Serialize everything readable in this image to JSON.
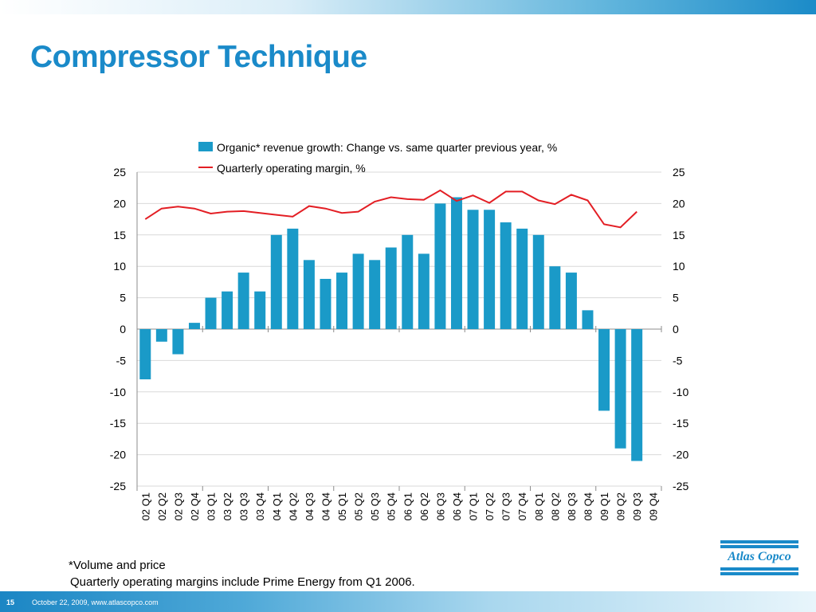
{
  "slide": {
    "title": "Compressor Technique",
    "footnote_1": "*Volume and price",
    "footnote_2": "Quarterly operating margins include Prime Energy from Q1 2006.",
    "page_number": "15",
    "footer_text": "October 22, 2009, www.atlascopco.com",
    "logo_text": "Atlas Copco"
  },
  "colors": {
    "title": "#1a8ac9",
    "bar": "#1a9ac8",
    "line": "#e31e24",
    "grid": "#d9d9d9",
    "axis": "#8c8c8c"
  },
  "chart_data": {
    "type": "bar",
    "categories": [
      "02 Q1",
      "02 Q2",
      "02 Q3",
      "02 Q4",
      "03 Q1",
      "03 Q2",
      "03 Q3",
      "03 Q4",
      "04 Q1",
      "04 Q2",
      "04 Q3",
      "04 Q4",
      "05 Q1",
      "05 Q2",
      "05 Q3",
      "05 Q4",
      "06 Q1",
      "06 Q2",
      "06 Q3",
      "06 Q4",
      "07 Q1",
      "07 Q2",
      "07 Q3",
      "07 Q4",
      "08 Q1",
      "08 Q2",
      "08 Q3",
      "08 Q4",
      "09 Q1",
      "09 Q2",
      "09 Q3",
      "09 Q4"
    ],
    "series": [
      {
        "name": "Organic* revenue growth: Change vs. same quarter previous year, %",
        "type": "bar",
        "values": [
          -8,
          -2,
          -4,
          1,
          5,
          6,
          9,
          6,
          15,
          16,
          11,
          8,
          9,
          12,
          11,
          13,
          15,
          12,
          20,
          21,
          19,
          19,
          17,
          16,
          15,
          10,
          9,
          3,
          -13,
          -19,
          -21,
          null
        ]
      },
      {
        "name": "Quarterly operating margin, %",
        "type": "line",
        "values": [
          17.5,
          19.2,
          19.5,
          19.2,
          18.4,
          18.7,
          18.8,
          18.5,
          18.2,
          17.9,
          19.6,
          19.2,
          18.5,
          18.7,
          20.3,
          21.0,
          20.7,
          20.6,
          22.1,
          20.4,
          21.3,
          20.1,
          21.9,
          21.9,
          20.5,
          19.9,
          21.4,
          20.5,
          16.7,
          16.2,
          18.7,
          null
        ]
      }
    ],
    "ylim": [
      -25,
      25
    ],
    "y_ticks": [
      25,
      20,
      15,
      10,
      5,
      0,
      -5,
      -10,
      -15,
      -20,
      -25
    ],
    "y2lim": [
      -25,
      25
    ],
    "gridlines": true,
    "legend": "top-center",
    "xlabel": "",
    "ylabel": ""
  }
}
